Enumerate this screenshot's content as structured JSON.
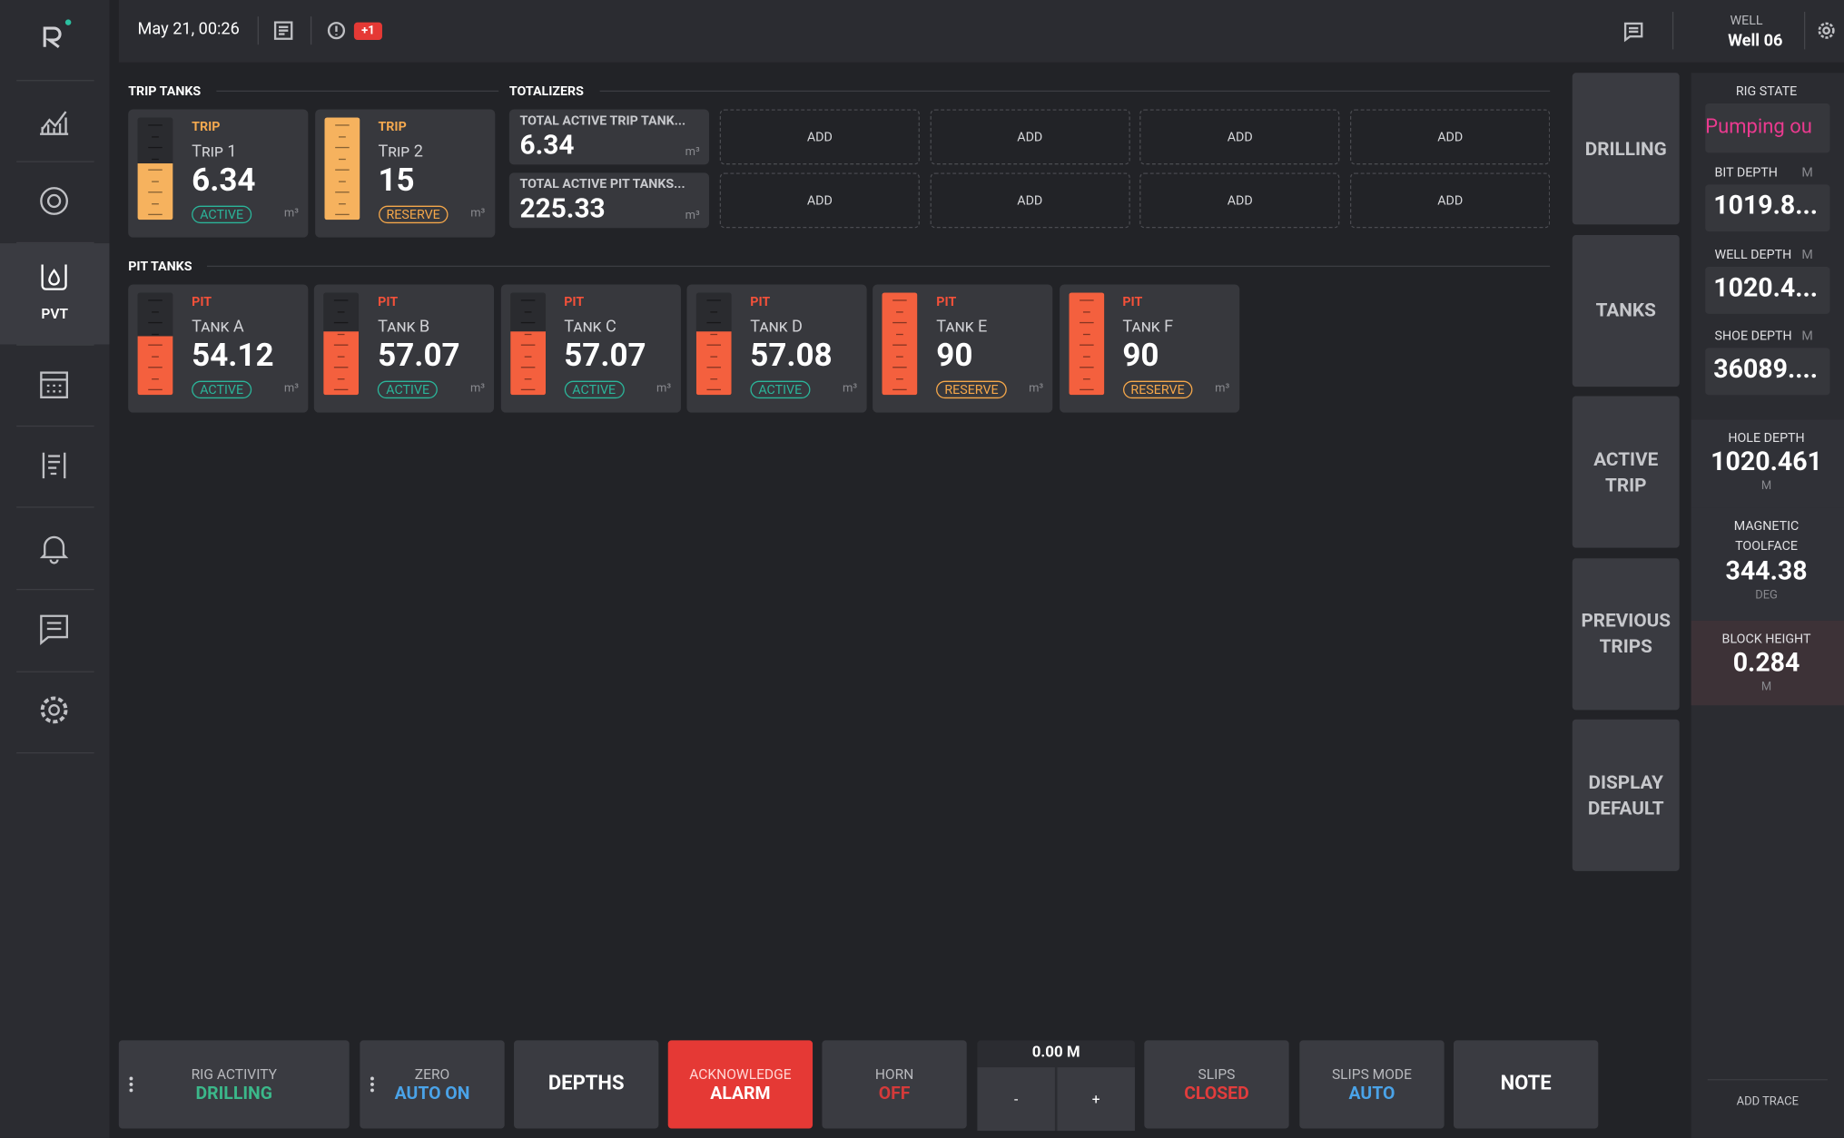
{
  "header": {
    "date": "May 21, 00:26",
    "alert_badge": "+1",
    "well_label": "WELL",
    "well_name": "Well 06"
  },
  "nav": {
    "active_label": "PVT"
  },
  "trip_tanks": {
    "title": "TRIP TANKS",
    "tanks": [
      {
        "kind": "TRIP",
        "name": "Trip 1",
        "value": 6.34,
        "status": "ACTIVE",
        "unit": "m³"
      },
      {
        "kind": "TRIP",
        "name": "Trip 2",
        "value": 15,
        "status": "RESERVE",
        "unit": "m³"
      }
    ]
  },
  "totalizers": {
    "title": "TOTALIZERS",
    "items": [
      {
        "label": "TOTAL ACTIVE TRIP TANK...",
        "value": 6.34,
        "unit": "m³"
      },
      {
        "label": "TOTAL ACTIVE PIT TANKS...",
        "value": 225.33,
        "unit": "m³"
      }
    ],
    "add_buttons": [
      "ADD",
      "ADD",
      "ADD",
      "ADD",
      "ADD",
      "ADD",
      "ADD",
      "ADD"
    ]
  },
  "pit_tanks": {
    "title": "PIT TANKS",
    "tanks": [
      {
        "kind": "PIT",
        "name": "Tank A",
        "value": 54.12,
        "status": "ACTIVE",
        "unit": "m³"
      },
      {
        "kind": "PIT",
        "name": "Tank B",
        "value": 57.07,
        "status": "ACTIVE",
        "unit": "m³"
      },
      {
        "kind": "PIT",
        "name": "Tank C",
        "value": 57.07,
        "status": "ACTIVE",
        "unit": "m³"
      },
      {
        "kind": "PIT",
        "name": "Tank D",
        "value": 57.08,
        "status": "ACTIVE",
        "unit": "m³"
      },
      {
        "kind": "PIT",
        "name": "Tank E",
        "value": 90,
        "status": "RESERVE",
        "unit": "m³"
      },
      {
        "kind": "PIT",
        "name": "Tank F",
        "value": 90,
        "status": "RESERVE",
        "unit": "m³"
      }
    ]
  },
  "side_buttons": [
    "DRILLING",
    "TANKS",
    "ACTIVE TRIP",
    "PREVIOUS TRIPS",
    "DISPLAY DEFAULT"
  ],
  "rig_panel": {
    "title": "RIG STATE",
    "rig_state": "Pumping ou",
    "items": [
      {
        "label": "BIT DEPTH",
        "unit": "M",
        "value": "1019.8..."
      },
      {
        "label": "WELL DEPTH",
        "unit": "M",
        "value": "1020.4..."
      },
      {
        "label": "SHOE DEPTH",
        "unit": "M",
        "value": "36089...."
      }
    ],
    "readouts": [
      {
        "label": "HOLE DEPTH",
        "value": 1020.461,
        "unit": "M"
      },
      {
        "label": "MAGNETIC TOOLFACE",
        "value": 344.38,
        "unit": "DEG"
      },
      {
        "label": "BLOCK HEIGHT",
        "value": 0.284,
        "unit": "M"
      }
    ],
    "add_trace": "ADD TRACE"
  },
  "bottom_bar": {
    "buttons": [
      {
        "label": "RIG ACTIVITY",
        "value": "DRILLING"
      },
      {
        "label": "ZERO",
        "value": "AUTO ON"
      },
      {
        "value": "DEPTHS"
      },
      {
        "label": "ACKNOWLEDGE",
        "value": "ALARM"
      },
      {
        "label": "HORN",
        "value": "OFF"
      },
      {
        "label": "SLIPS",
        "value": "CLOSED"
      },
      {
        "label": "SLIPS MODE",
        "value": "AUTO"
      },
      {
        "value": "NOTE"
      }
    ],
    "depth": {
      "value": "0.00 M",
      "minus": "-",
      "plus": "+"
    }
  }
}
